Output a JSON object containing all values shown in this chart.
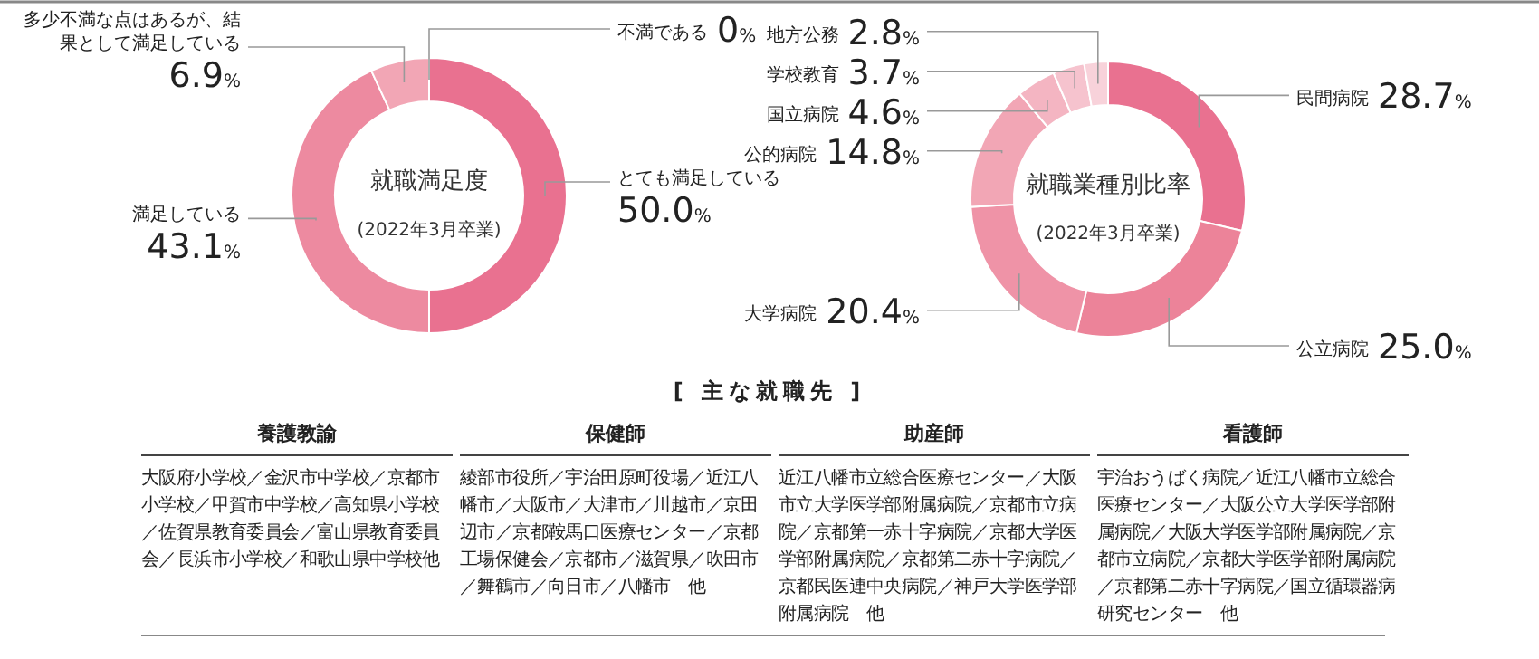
{
  "chart_data": [
    {
      "type": "donut",
      "title": "就職満足度",
      "subtitle": "(2022年3月卒業)",
      "categories": [
        "不満である",
        "とても満足している",
        "満足している",
        "多少不満な点はあるが、結果として満足している"
      ],
      "values": [
        0,
        50.0,
        43.1,
        6.9
      ],
      "colors": [
        null,
        "#e97190",
        "#ed8aa0",
        "#f2a6b5"
      ],
      "value_labels": [
        "0%",
        "50.0%",
        "43.1%",
        "6.9%"
      ]
    },
    {
      "type": "donut",
      "title": "就職業種別比率",
      "subtitle": "(2022年3月卒業)",
      "categories": [
        "民間病院",
        "公立病院",
        "大学病院",
        "公的病院",
        "国立病院",
        "学校教育",
        "地方公務"
      ],
      "values": [
        28.7,
        25.0,
        20.4,
        14.8,
        4.6,
        3.7,
        2.8
      ],
      "colors": [
        "#e97190",
        "#ec8399",
        "#ef93a7",
        "#f2a6b5",
        "#f4b5c2",
        "#f6c3ce",
        "#f8d2da"
      ],
      "value_labels": [
        "28.7%",
        "25.0%",
        "20.4%",
        "14.8%",
        "4.6%",
        "3.7%",
        "2.8%"
      ]
    },
    {
      "type": "other",
      "title": "[ 主な就職先 ]"
    },
    {
      "type": "other",
      "title": "養護教諭",
      "annotations": [
        "大阪府小学校／金沢市中学校／京都市小学校／甲賀市中学校／高知県小学校／佐賀県教育委員会／富山県教育委員会／長浜市小学校／和歌山県中学校他"
      ]
    },
    {
      "type": "other",
      "title": "保健師",
      "annotations": [
        "綾部市役所／宇治田原町役場／近江八幡市／大阪市／大津市／川越市／京田辺市／京都鞍馬口医療センター／京都工場保健会／京都市／滋賀県／吹田市／舞鶴市／向日市／八幡市　他"
      ]
    },
    {
      "type": "other",
      "title": "助産師",
      "annotations": [
        "近江八幡市立総合医療センター／大阪市立大学医学部附属病院／京都市立病院／京都第一赤十字病院／京都大学医学部附属病院／京都第二赤十字病院／京都民医連中央病院／神戸大学医学部附属病院　他"
      ]
    },
    {
      "type": "other",
      "title": "看護師",
      "annotations": [
        "宇治おうばく病院／近江八幡市立総合医療センター／大阪公立大学医学部附属病院／大阪大学医学部附属病院／京都市立病院／京都大学医学部附属病院／京都第二赤十字病院／国立循環器病研究センター　他"
      ]
    }
  ]
}
